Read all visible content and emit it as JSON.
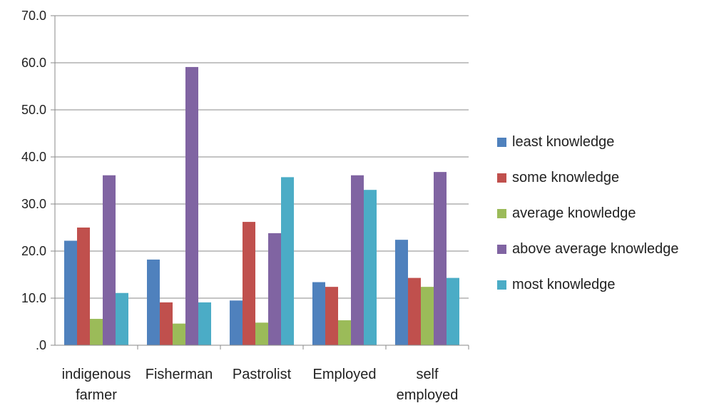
{
  "chart_data": {
    "type": "bar",
    "title": "",
    "xlabel": "",
    "ylabel": "",
    "ylim": [
      0,
      70
    ],
    "yticks": [
      ".0",
      "10.0",
      "20.0",
      "30.0",
      "40.0",
      "50.0",
      "60.0",
      "70.0"
    ],
    "grid": true,
    "legend_position": "right",
    "categories": [
      [
        "indigenous",
        "farmer"
      ],
      [
        "Fisherman"
      ],
      [
        "Pastrolist"
      ],
      [
        "Employed"
      ],
      [
        "self",
        "employed"
      ]
    ],
    "series": [
      {
        "name": "least knowledge",
        "color": "#4F81BD",
        "values": [
          22.2,
          18.2,
          9.5,
          13.4,
          22.4
        ]
      },
      {
        "name": "some knowledge",
        "color": "#C0504D",
        "values": [
          25.0,
          9.1,
          26.2,
          12.4,
          14.3
        ]
      },
      {
        "name": "average knowledge",
        "color": "#9BBB59",
        "values": [
          5.6,
          4.6,
          4.8,
          5.3,
          12.4
        ]
      },
      {
        "name": "above average knowledge",
        "color": "#8064A2",
        "values": [
          36.1,
          59.1,
          23.8,
          36.1,
          36.8
        ]
      },
      {
        "name": "most knowledge",
        "color": "#4BACC6",
        "values": [
          11.1,
          9.1,
          35.7,
          33.0,
          14.3
        ]
      }
    ]
  }
}
